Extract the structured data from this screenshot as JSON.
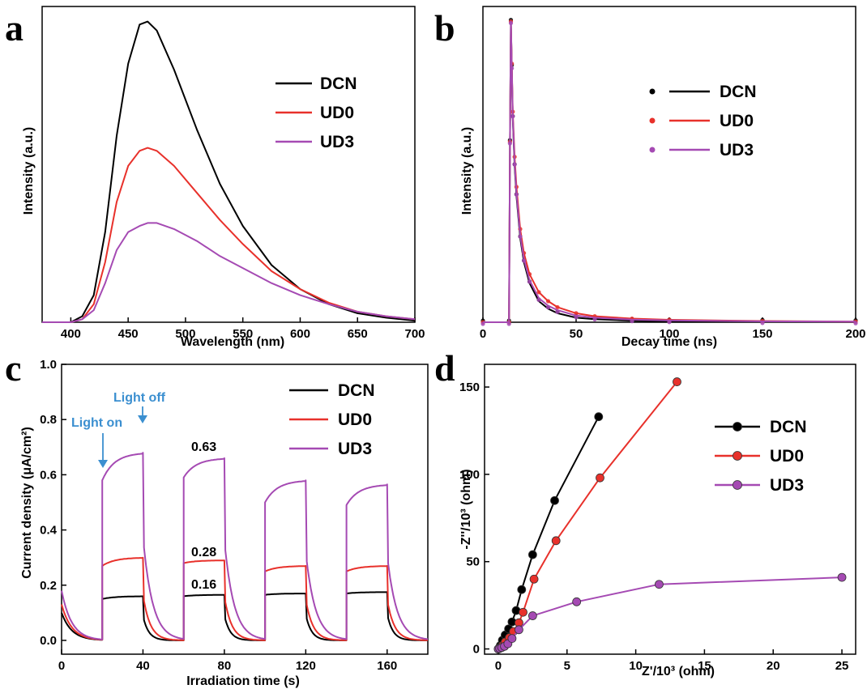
{
  "colors": {
    "DCN": "#000000",
    "UD0": "#e8312b",
    "UD3": "#a54ab3",
    "annotation": "#3b8fd0"
  },
  "chart_data": [
    {
      "panel": "a",
      "type": "line",
      "xlabel": "Wavelength (nm)",
      "ylabel": "Intensity (a.u.)",
      "xlim": [
        375,
        700
      ],
      "ylim": [
        0,
        1.05
      ],
      "xticks": [
        400,
        450,
        500,
        550,
        600,
        650,
        700
      ],
      "yticks": [],
      "legend": "top-right",
      "x": [
        375,
        400,
        410,
        420,
        430,
        440,
        450,
        460,
        467,
        475,
        490,
        510,
        530,
        550,
        575,
        600,
        625,
        650,
        675,
        700
      ],
      "series": [
        {
          "name": "DCN",
          "values": [
            0.0,
            0.0,
            0.02,
            0.09,
            0.3,
            0.62,
            0.86,
            0.99,
            1.0,
            0.97,
            0.84,
            0.64,
            0.46,
            0.32,
            0.19,
            0.11,
            0.06,
            0.03,
            0.015,
            0.005
          ]
        },
        {
          "name": "UD0",
          "values": [
            0.0,
            0.0,
            0.01,
            0.06,
            0.2,
            0.4,
            0.52,
            0.57,
            0.58,
            0.57,
            0.52,
            0.43,
            0.34,
            0.26,
            0.17,
            0.11,
            0.065,
            0.035,
            0.02,
            0.01
          ]
        },
        {
          "name": "UD3",
          "values": [
            0.0,
            0.0,
            0.01,
            0.04,
            0.13,
            0.24,
            0.3,
            0.32,
            0.33,
            0.33,
            0.31,
            0.27,
            0.22,
            0.18,
            0.13,
            0.09,
            0.06,
            0.035,
            0.02,
            0.01
          ]
        }
      ]
    },
    {
      "panel": "b",
      "type": "line",
      "xlabel": "Decay time (ns)",
      "ylabel": "Intensity (a.u.)",
      "xlim": [
        0,
        200
      ],
      "ylim": [
        0,
        1.05
      ],
      "xticks": [
        0,
        50,
        100,
        150,
        200
      ],
      "yticks": [],
      "legend": "top-right",
      "x": [
        0,
        14,
        14.5,
        15,
        15.5,
        16,
        17,
        18,
        20,
        22,
        25,
        30,
        35,
        40,
        50,
        60,
        80,
        100,
        150,
        200
      ],
      "series": [
        {
          "name": "DCN",
          "values": [
            0.0,
            0.0,
            0.6,
            1.0,
            0.85,
            0.68,
            0.52,
            0.42,
            0.28,
            0.2,
            0.13,
            0.07,
            0.045,
            0.03,
            0.015,
            0.01,
            0.005,
            0.003,
            0.002,
            0.001
          ]
        },
        {
          "name": "UD0",
          "values": [
            0.0,
            0.0,
            0.6,
            1.0,
            0.86,
            0.7,
            0.55,
            0.45,
            0.31,
            0.23,
            0.16,
            0.1,
            0.07,
            0.05,
            0.03,
            0.02,
            0.012,
            0.008,
            0.004,
            0.002
          ]
        },
        {
          "name": "UD3",
          "values": [
            0.0,
            0.0,
            0.6,
            1.0,
            0.85,
            0.69,
            0.53,
            0.43,
            0.29,
            0.21,
            0.14,
            0.08,
            0.055,
            0.04,
            0.022,
            0.015,
            0.009,
            0.006,
            0.003,
            0.002
          ]
        }
      ]
    },
    {
      "panel": "c",
      "type": "line",
      "xlabel": "Irradiation time (s)",
      "ylabel": "Current density (μA/cm²)",
      "xlim": [
        0,
        180
      ],
      "ylim": [
        -0.05,
        1.0
      ],
      "xticks": [
        0,
        40,
        80,
        120,
        160
      ],
      "yticks": [
        0.0,
        0.2,
        0.4,
        0.6,
        0.8,
        1.0
      ],
      "legend": "top-right",
      "cycles": [
        {
          "on": 20,
          "off": 40,
          "DCN": [
            0.15,
            0.16
          ],
          "UD0": [
            0.27,
            0.3
          ],
          "UD3": [
            0.58,
            0.68
          ]
        },
        {
          "on": 60,
          "off": 80,
          "DCN": [
            0.16,
            0.165
          ],
          "UD0": [
            0.28,
            0.29
          ],
          "UD3": [
            0.59,
            0.66
          ]
        },
        {
          "on": 100,
          "off": 120,
          "DCN": [
            0.165,
            0.17
          ],
          "UD0": [
            0.25,
            0.27
          ],
          "UD3": [
            0.5,
            0.58
          ]
        },
        {
          "on": 140,
          "off": 160,
          "DCN": [
            0.17,
            0.175
          ],
          "UD0": [
            0.25,
            0.27
          ],
          "UD3": [
            0.49,
            0.565
          ]
        }
      ],
      "series": [
        {
          "name": "DCN"
        },
        {
          "name": "UD0"
        },
        {
          "name": "UD3"
        }
      ],
      "annotations": {
        "light_on": "Light on",
        "light_off": "Light off",
        "labels": [
          "0.63",
          "0.28",
          "0.16"
        ]
      }
    },
    {
      "panel": "d",
      "type": "scatter",
      "xlabel": "Z'/10³ (ohm)",
      "ylabel": "-Z''/10³ (ohm)",
      "xlim": [
        -1,
        26
      ],
      "ylim": [
        -3,
        163
      ],
      "xticks": [
        0,
        5,
        10,
        15,
        20,
        25
      ],
      "yticks": [
        0,
        50,
        100,
        150
      ],
      "legend": "right",
      "series": [
        {
          "name": "DCN",
          "x": [
            0,
            0.15,
            0.3,
            0.5,
            0.75,
            1.0,
            1.3,
            1.7,
            2.5,
            4.1,
            7.3
          ],
          "y": [
            0,
            2,
            5,
            8,
            11.5,
            15.5,
            22,
            34,
            54,
            85,
            133
          ]
        },
        {
          "name": "UD0",
          "x": [
            0,
            0.15,
            0.3,
            0.5,
            0.8,
            1.1,
            1.5,
            1.8,
            2.6,
            4.2,
            7.4,
            13.0
          ],
          "y": [
            0,
            1,
            2,
            4,
            6.5,
            10,
            15,
            21,
            40,
            62,
            98,
            153
          ]
        },
        {
          "name": "UD3",
          "x": [
            0,
            0.1,
            0.25,
            0.45,
            0.7,
            1.0,
            1.5,
            2.5,
            5.7,
            11.7,
            25.0
          ],
          "y": [
            0,
            0.3,
            0.8,
            1.5,
            3,
            6,
            11,
            19,
            27,
            37,
            41
          ]
        }
      ]
    }
  ]
}
